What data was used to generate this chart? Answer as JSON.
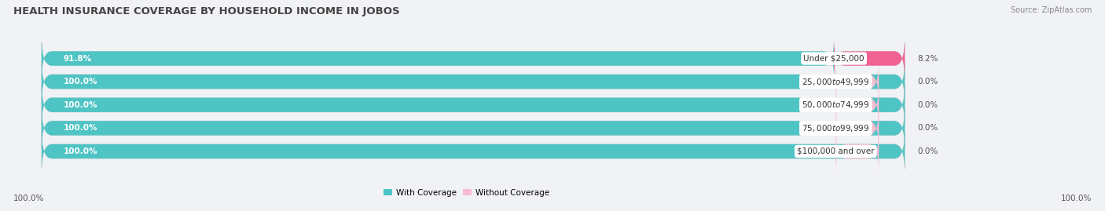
{
  "title": "HEALTH INSURANCE COVERAGE BY HOUSEHOLD INCOME IN JOBOS",
  "source": "Source: ZipAtlas.com",
  "categories": [
    "Under $25,000",
    "$25,000 to $49,999",
    "$50,000 to $74,999",
    "$75,000 to $99,999",
    "$100,000 and over"
  ],
  "with_coverage": [
    91.8,
    100.0,
    100.0,
    100.0,
    100.0
  ],
  "without_coverage": [
    8.2,
    0.0,
    0.0,
    0.0,
    0.0
  ],
  "color_with": "#4ec4c4",
  "color_without": "#f06292",
  "color_without_light": "#f8bbd0",
  "bar_bg": "#ffffff",
  "fig_bg": "#f0f2f5",
  "title_fontsize": 9.5,
  "label_fontsize": 7.5,
  "source_fontsize": 7.0,
  "bar_height": 0.62,
  "bar_max": 100,
  "xlim_max": 120,
  "bottom_label": "100.0%"
}
